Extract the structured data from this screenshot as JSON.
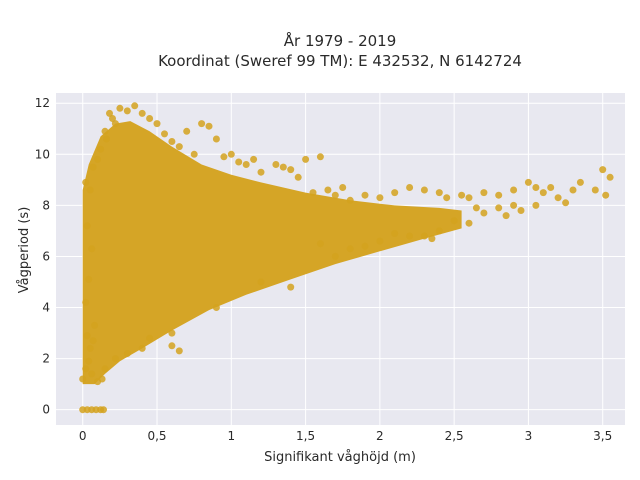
{
  "chart_data": {
    "type": "scatter",
    "title_line1": "År 1979 - 2019",
    "title_line2": "Koordinat (Sweref 99 TM): E 432532, N 6142724",
    "xlabel": "Signifikant våghöjd (m)",
    "ylabel": "Vågperiod (s)",
    "xlim": [
      -0.18,
      3.65
    ],
    "ylim": [
      -0.6,
      12.4
    ],
    "xticks": [
      0,
      0.5,
      1,
      1.5,
      2,
      2.5,
      3,
      3.5
    ],
    "xtick_labels": [
      "0",
      "0,5",
      "1",
      "1,5",
      "2",
      "2,5",
      "3",
      "3,5"
    ],
    "yticks": [
      0,
      2,
      4,
      6,
      8,
      10,
      12
    ],
    "ytick_labels": [
      "0",
      "2",
      "4",
      "6",
      "8",
      "10",
      "12"
    ],
    "grid": true,
    "marker_color": "#D4A21F",
    "background_color": "#E8E8F0",
    "series": [
      {
        "values": [
          [
            0.0,
            0.0
          ],
          [
            0.03,
            0.0
          ],
          [
            0.06,
            0.0
          ],
          [
            0.09,
            0.0
          ],
          [
            0.12,
            0.0
          ],
          [
            0.14,
            0.0
          ],
          [
            0.0,
            1.2
          ],
          [
            0.02,
            1.6
          ],
          [
            0.04,
            1.9
          ],
          [
            0.05,
            2.4
          ],
          [
            0.07,
            2.7
          ],
          [
            0.08,
            3.3
          ],
          [
            0.03,
            2.9
          ],
          [
            0.06,
            1.4
          ],
          [
            0.1,
            1.1
          ],
          [
            0.13,
            1.2
          ],
          [
            0.02,
            4.2
          ],
          [
            0.04,
            5.1
          ],
          [
            0.06,
            6.3
          ],
          [
            0.03,
            7.2
          ],
          [
            0.05,
            8.6
          ],
          [
            0.07,
            9.5
          ],
          [
            0.02,
            8.9
          ],
          [
            0.1,
            9.8
          ],
          [
            0.12,
            10.2
          ],
          [
            0.15,
            10.9
          ],
          [
            0.18,
            11.6
          ],
          [
            0.2,
            11.4
          ],
          [
            0.25,
            11.8
          ],
          [
            0.3,
            11.7
          ],
          [
            0.35,
            11.9
          ],
          [
            0.4,
            11.6
          ],
          [
            0.45,
            11.4
          ],
          [
            0.22,
            11.2
          ],
          [
            0.16,
            10.6
          ],
          [
            0.5,
            11.2
          ],
          [
            0.55,
            10.8
          ],
          [
            0.6,
            10.5
          ],
          [
            0.65,
            10.3
          ],
          [
            0.7,
            10.9
          ],
          [
            0.8,
            11.2
          ],
          [
            0.85,
            11.1
          ],
          [
            0.9,
            10.6
          ],
          [
            0.75,
            10.0
          ],
          [
            0.95,
            9.9
          ],
          [
            1.0,
            10.0
          ],
          [
            1.05,
            9.7
          ],
          [
            1.1,
            9.6
          ],
          [
            1.15,
            9.8
          ],
          [
            1.2,
            9.3
          ],
          [
            1.3,
            9.6
          ],
          [
            1.35,
            9.5
          ],
          [
            1.4,
            9.4
          ],
          [
            1.5,
            9.8
          ],
          [
            1.45,
            9.1
          ],
          [
            1.6,
            9.9
          ],
          [
            1.55,
            8.5
          ],
          [
            1.65,
            8.6
          ],
          [
            1.7,
            8.4
          ],
          [
            1.8,
            8.2
          ],
          [
            1.75,
            8.7
          ],
          [
            1.9,
            8.4
          ],
          [
            2.0,
            8.3
          ],
          [
            2.1,
            8.5
          ],
          [
            2.2,
            8.7
          ],
          [
            2.3,
            8.6
          ],
          [
            2.4,
            8.5
          ],
          [
            2.45,
            8.3
          ],
          [
            2.55,
            8.4
          ],
          [
            2.6,
            8.3
          ],
          [
            2.7,
            8.5
          ],
          [
            2.8,
            8.4
          ],
          [
            2.9,
            8.6
          ],
          [
            3.0,
            8.9
          ],
          [
            3.05,
            8.7
          ],
          [
            3.1,
            8.5
          ],
          [
            3.15,
            8.7
          ],
          [
            3.2,
            8.3
          ],
          [
            3.3,
            8.6
          ],
          [
            3.35,
            8.9
          ],
          [
            3.45,
            8.6
          ],
          [
            3.5,
            9.4
          ],
          [
            3.55,
            9.1
          ],
          [
            3.52,
            8.4
          ],
          [
            2.5,
            7.4
          ],
          [
            2.6,
            7.3
          ],
          [
            2.7,
            7.7
          ],
          [
            2.8,
            7.9
          ],
          [
            2.9,
            8.0
          ],
          [
            2.95,
            7.8
          ],
          [
            3.05,
            8.0
          ],
          [
            3.25,
            8.1
          ],
          [
            2.65,
            7.9
          ],
          [
            2.85,
            7.6
          ],
          [
            1.4,
            4.8
          ],
          [
            1.2,
            5.0
          ],
          [
            0.9,
            4.0
          ],
          [
            0.6,
            3.0
          ],
          [
            0.4,
            2.4
          ],
          [
            0.3,
            2.2
          ],
          [
            0.22,
            2.0
          ],
          [
            0.15,
            1.6
          ],
          [
            0.65,
            2.3
          ],
          [
            0.6,
            2.5
          ],
          [
            0.45,
            2.8
          ],
          [
            1.6,
            6.5
          ],
          [
            1.7,
            6.0
          ],
          [
            1.8,
            6.3
          ],
          [
            1.9,
            6.4
          ],
          [
            2.0,
            6.6
          ],
          [
            2.1,
            6.9
          ],
          [
            2.2,
            6.8
          ],
          [
            2.3,
            6.8
          ],
          [
            2.4,
            7.0
          ],
          [
            2.35,
            6.7
          ]
        ]
      }
    ]
  }
}
